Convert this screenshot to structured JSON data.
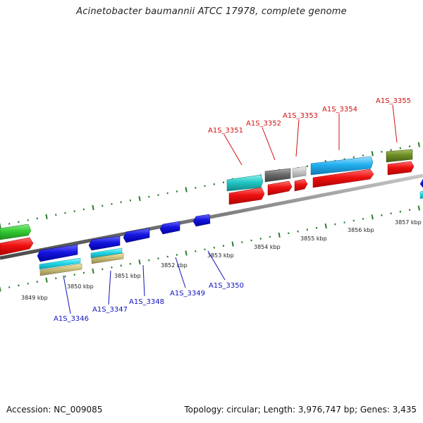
{
  "title": "Acinetobacter baumannii ATCC 17978, complete genome",
  "accession": "Accession: NC_009085",
  "topology": "Topology: circular; Length: 3,976,747 bp; Genes: 3,435",
  "colors": {
    "backbone": "#8a8a8a",
    "tick": "#2e7d32",
    "label_upper": "#d01010",
    "label_lower": "#1010c0"
  },
  "kbp_labels": [
    "3849 kbp",
    "3850 kbp",
    "3851 kbp",
    "3852 kbp",
    "3853 kbp",
    "3854 kbp",
    "3855 kbp",
    "3856 kbp",
    "3857 kbp"
  ],
  "upper_genes": [
    "A1S_3351",
    "A1S_3352",
    "A1S_3353",
    "A1S_3354",
    "A1S_3355"
  ],
  "lower_genes": [
    "A1S_3346",
    "A1S_3347",
    "A1S_3348",
    "A1S_3349",
    "A1S_3350"
  ]
}
